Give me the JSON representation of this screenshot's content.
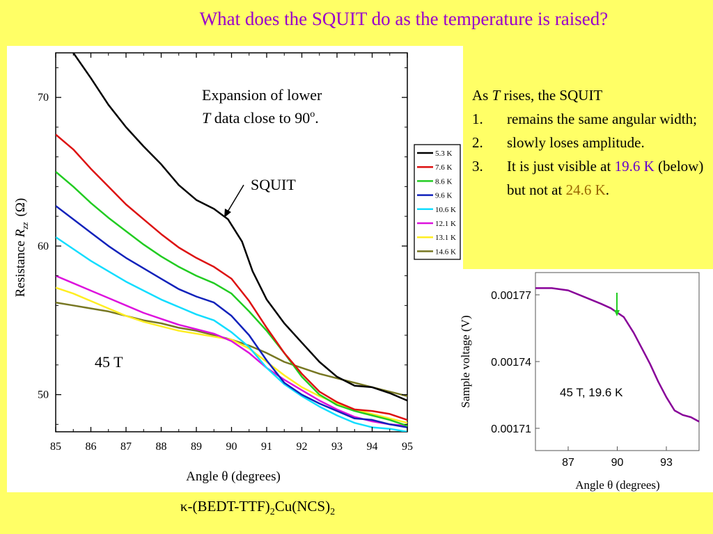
{
  "slide": {
    "title": "What does the SQUIT do as the temperature is raised?",
    "formula": {
      "prefix": "κ-(BEDT-TTF)",
      "sub1": "2",
      "mid": "Cu(NCS)",
      "sub2": "2"
    }
  },
  "notes": {
    "heading_pre": "As ",
    "heading_var": "T",
    "heading_post": " rises, the SQUIT",
    "items": [
      {
        "num": "1.",
        "text": "remains the same angular width;"
      },
      {
        "num": "2.",
        "text": "slowly loses amplitude."
      },
      {
        "num": "3.",
        "pre": "It is just visible at ",
        "hl1": "19.6 K",
        "mid": " (below) but not at ",
        "hl2": "24.6 K",
        "post": "."
      }
    ],
    "colors": {
      "hl1": "#6600cc",
      "hl2": "#996600"
    }
  },
  "chart_data": [
    {
      "type": "line",
      "xlabel": "Angle θ (degrees)",
      "ylabel": "Resistance R_zz (Ω)",
      "ylabel_parts": {
        "main": "Resistance ",
        "var": "R",
        "sub": "zz",
        "unit": "(Ω)"
      },
      "xlim": [
        85,
        95
      ],
      "ylim": [
        47.5,
        73
      ],
      "xticks": [
        "85",
        "86",
        "87",
        "88",
        "89",
        "90",
        "91",
        "92",
        "93",
        "94",
        "95"
      ],
      "yticks": [
        "50",
        "60",
        "70"
      ],
      "annotations": {
        "note_line1": "Expansion of lower",
        "note_line2_var": "T",
        "note_line2": " data close to 90",
        "note_sup": "o",
        "note_end": ".",
        "squit": "SQUIT",
        "field": "45 T"
      },
      "legend_position": "right",
      "series": [
        {
          "name": "5.3 K",
          "color": "#000000",
          "x": [
            85.5,
            86,
            86.5,
            87,
            87.5,
            88,
            88.5,
            89,
            89.5,
            89.9,
            90.3,
            90.6,
            91,
            91.5,
            92,
            92.5,
            93,
            93.5,
            94,
            94.5,
            95
          ],
          "y": [
            73,
            71.3,
            69.5,
            68,
            66.7,
            65.5,
            64.1,
            63.1,
            62.5,
            61.8,
            60.3,
            58.3,
            56.4,
            54.8,
            53.5,
            52.2,
            51.2,
            50.6,
            50.5,
            50.1,
            49.6
          ]
        },
        {
          "name": "7.6 K",
          "color": "#dd1111",
          "x": [
            85,
            85.5,
            86,
            86.5,
            87,
            87.5,
            88,
            88.5,
            89,
            89.5,
            90,
            90.5,
            91,
            91.5,
            92,
            92.5,
            93,
            93.5,
            94,
            94.5,
            95
          ],
          "y": [
            67.5,
            66.5,
            65.2,
            64.0,
            62.8,
            61.8,
            60.8,
            59.9,
            59.2,
            58.6,
            57.8,
            56.3,
            54.5,
            52.8,
            51.4,
            50.2,
            49.5,
            49.0,
            48.9,
            48.7,
            48.3
          ]
        },
        {
          "name": "8.6 K",
          "color": "#22cc22",
          "x": [
            85,
            85.5,
            86,
            86.5,
            87,
            87.5,
            88,
            88.5,
            89,
            89.5,
            90,
            90.5,
            91,
            91.5,
            92,
            92.5,
            93,
            93.5,
            94,
            94.5,
            95
          ],
          "y": [
            65.0,
            64.0,
            62.9,
            61.9,
            61.0,
            60.1,
            59.3,
            58.6,
            58.0,
            57.5,
            56.8,
            55.6,
            54.3,
            52.8,
            51.2,
            50.0,
            49.3,
            48.9,
            48.6,
            48.3,
            47.9
          ]
        },
        {
          "name": "9.6 K",
          "color": "#1122bb",
          "x": [
            85,
            85.5,
            86,
            86.5,
            87,
            87.5,
            88,
            88.5,
            89,
            89.5,
            90,
            90.5,
            91,
            91.5,
            92,
            92.5,
            93,
            93.5,
            94,
            94.5,
            95
          ],
          "y": [
            62.7,
            61.8,
            60.9,
            60.0,
            59.2,
            58.5,
            57.8,
            57.1,
            56.6,
            56.2,
            55.3,
            54.0,
            52.3,
            50.8,
            50.0,
            49.4,
            48.9,
            48.4,
            48.3,
            48.0,
            47.8
          ]
        },
        {
          "name": "10.6 K",
          "color": "#11ddff",
          "x": [
            85,
            85.5,
            86,
            86.5,
            87,
            87.5,
            88,
            88.5,
            89,
            89.5,
            90,
            90.5,
            91,
            91.5,
            92,
            92.5,
            93,
            93.5,
            94,
            94.5,
            95
          ],
          "y": [
            60.6,
            59.8,
            59.0,
            58.3,
            57.6,
            57.0,
            56.4,
            55.9,
            55.4,
            55.0,
            54.2,
            53.2,
            51.8,
            50.7,
            49.9,
            49.2,
            48.6,
            48.1,
            47.8,
            47.7,
            47.5
          ]
        },
        {
          "name": "12.1 K",
          "color": "#dd11dd",
          "x": [
            85,
            85.5,
            86,
            86.5,
            87,
            87.5,
            88,
            88.5,
            89,
            89.5,
            90,
            90.5,
            91,
            91.5,
            92,
            92.5,
            93,
            93.5,
            94,
            94.5,
            95
          ],
          "y": [
            58.0,
            57.5,
            57.0,
            56.5,
            56.0,
            55.5,
            55.1,
            54.7,
            54.4,
            54.1,
            53.6,
            52.8,
            51.8,
            51.0,
            50.3,
            49.6,
            49.0,
            48.5,
            48.2,
            48.0,
            47.9
          ]
        },
        {
          "name": "13.1 K",
          "color": "#ffee22",
          "x": [
            85,
            85.5,
            86,
            86.5,
            87,
            87.5,
            88,
            88.5,
            89,
            89.5,
            90,
            90.5,
            91,
            91.5,
            92,
            92.5,
            93,
            93.5,
            94,
            94.5,
            95
          ],
          "y": [
            57.2,
            56.8,
            56.3,
            55.8,
            55.3,
            54.9,
            54.6,
            54.3,
            54.1,
            53.9,
            53.7,
            53.1,
            52.2,
            51.3,
            50.5,
            49.9,
            49.4,
            49.0,
            48.7,
            48.4,
            48.1
          ]
        },
        {
          "name": "14.6 K",
          "color": "#777722",
          "x": [
            85,
            85.5,
            86,
            86.5,
            87,
            87.5,
            88,
            88.5,
            89,
            89.5,
            90,
            90.5,
            91,
            91.5,
            92,
            92.5,
            93,
            93.5,
            94,
            94.5,
            95
          ],
          "y": [
            56.2,
            56.0,
            55.8,
            55.6,
            55.3,
            55.0,
            54.8,
            54.5,
            54.3,
            54.0,
            53.7,
            53.3,
            52.8,
            52.2,
            51.8,
            51.4,
            51.1,
            50.8,
            50.5,
            50.2,
            49.9
          ]
        }
      ]
    },
    {
      "type": "line",
      "xlabel": "Angle θ (degrees)",
      "ylabel": "Sample voltage (V)",
      "xlim": [
        85,
        95
      ],
      "ylim": [
        0.0017,
        0.00178
      ],
      "xticks": [
        "87",
        "90",
        "93"
      ],
      "yticks": [
        "0.00177",
        "0.00174",
        "0.00171"
      ],
      "annotation": "45 T, 19.6 K",
      "arrow_color": "#22cc22",
      "series": [
        {
          "color": "#880099",
          "x": [
            85,
            86,
            87,
            88,
            89,
            89.6,
            90,
            90.4,
            91,
            91.5,
            92,
            92.5,
            93,
            93.5,
            94,
            94.5,
            95
          ],
          "y": [
            0.001773,
            0.001773,
            0.001772,
            0.001769,
            0.001766,
            0.001764,
            0.001762,
            0.00176,
            0.001753,
            0.001746,
            0.001739,
            0.001731,
            0.001724,
            0.001718,
            0.001716,
            0.001715,
            0.001713
          ]
        }
      ]
    }
  ]
}
